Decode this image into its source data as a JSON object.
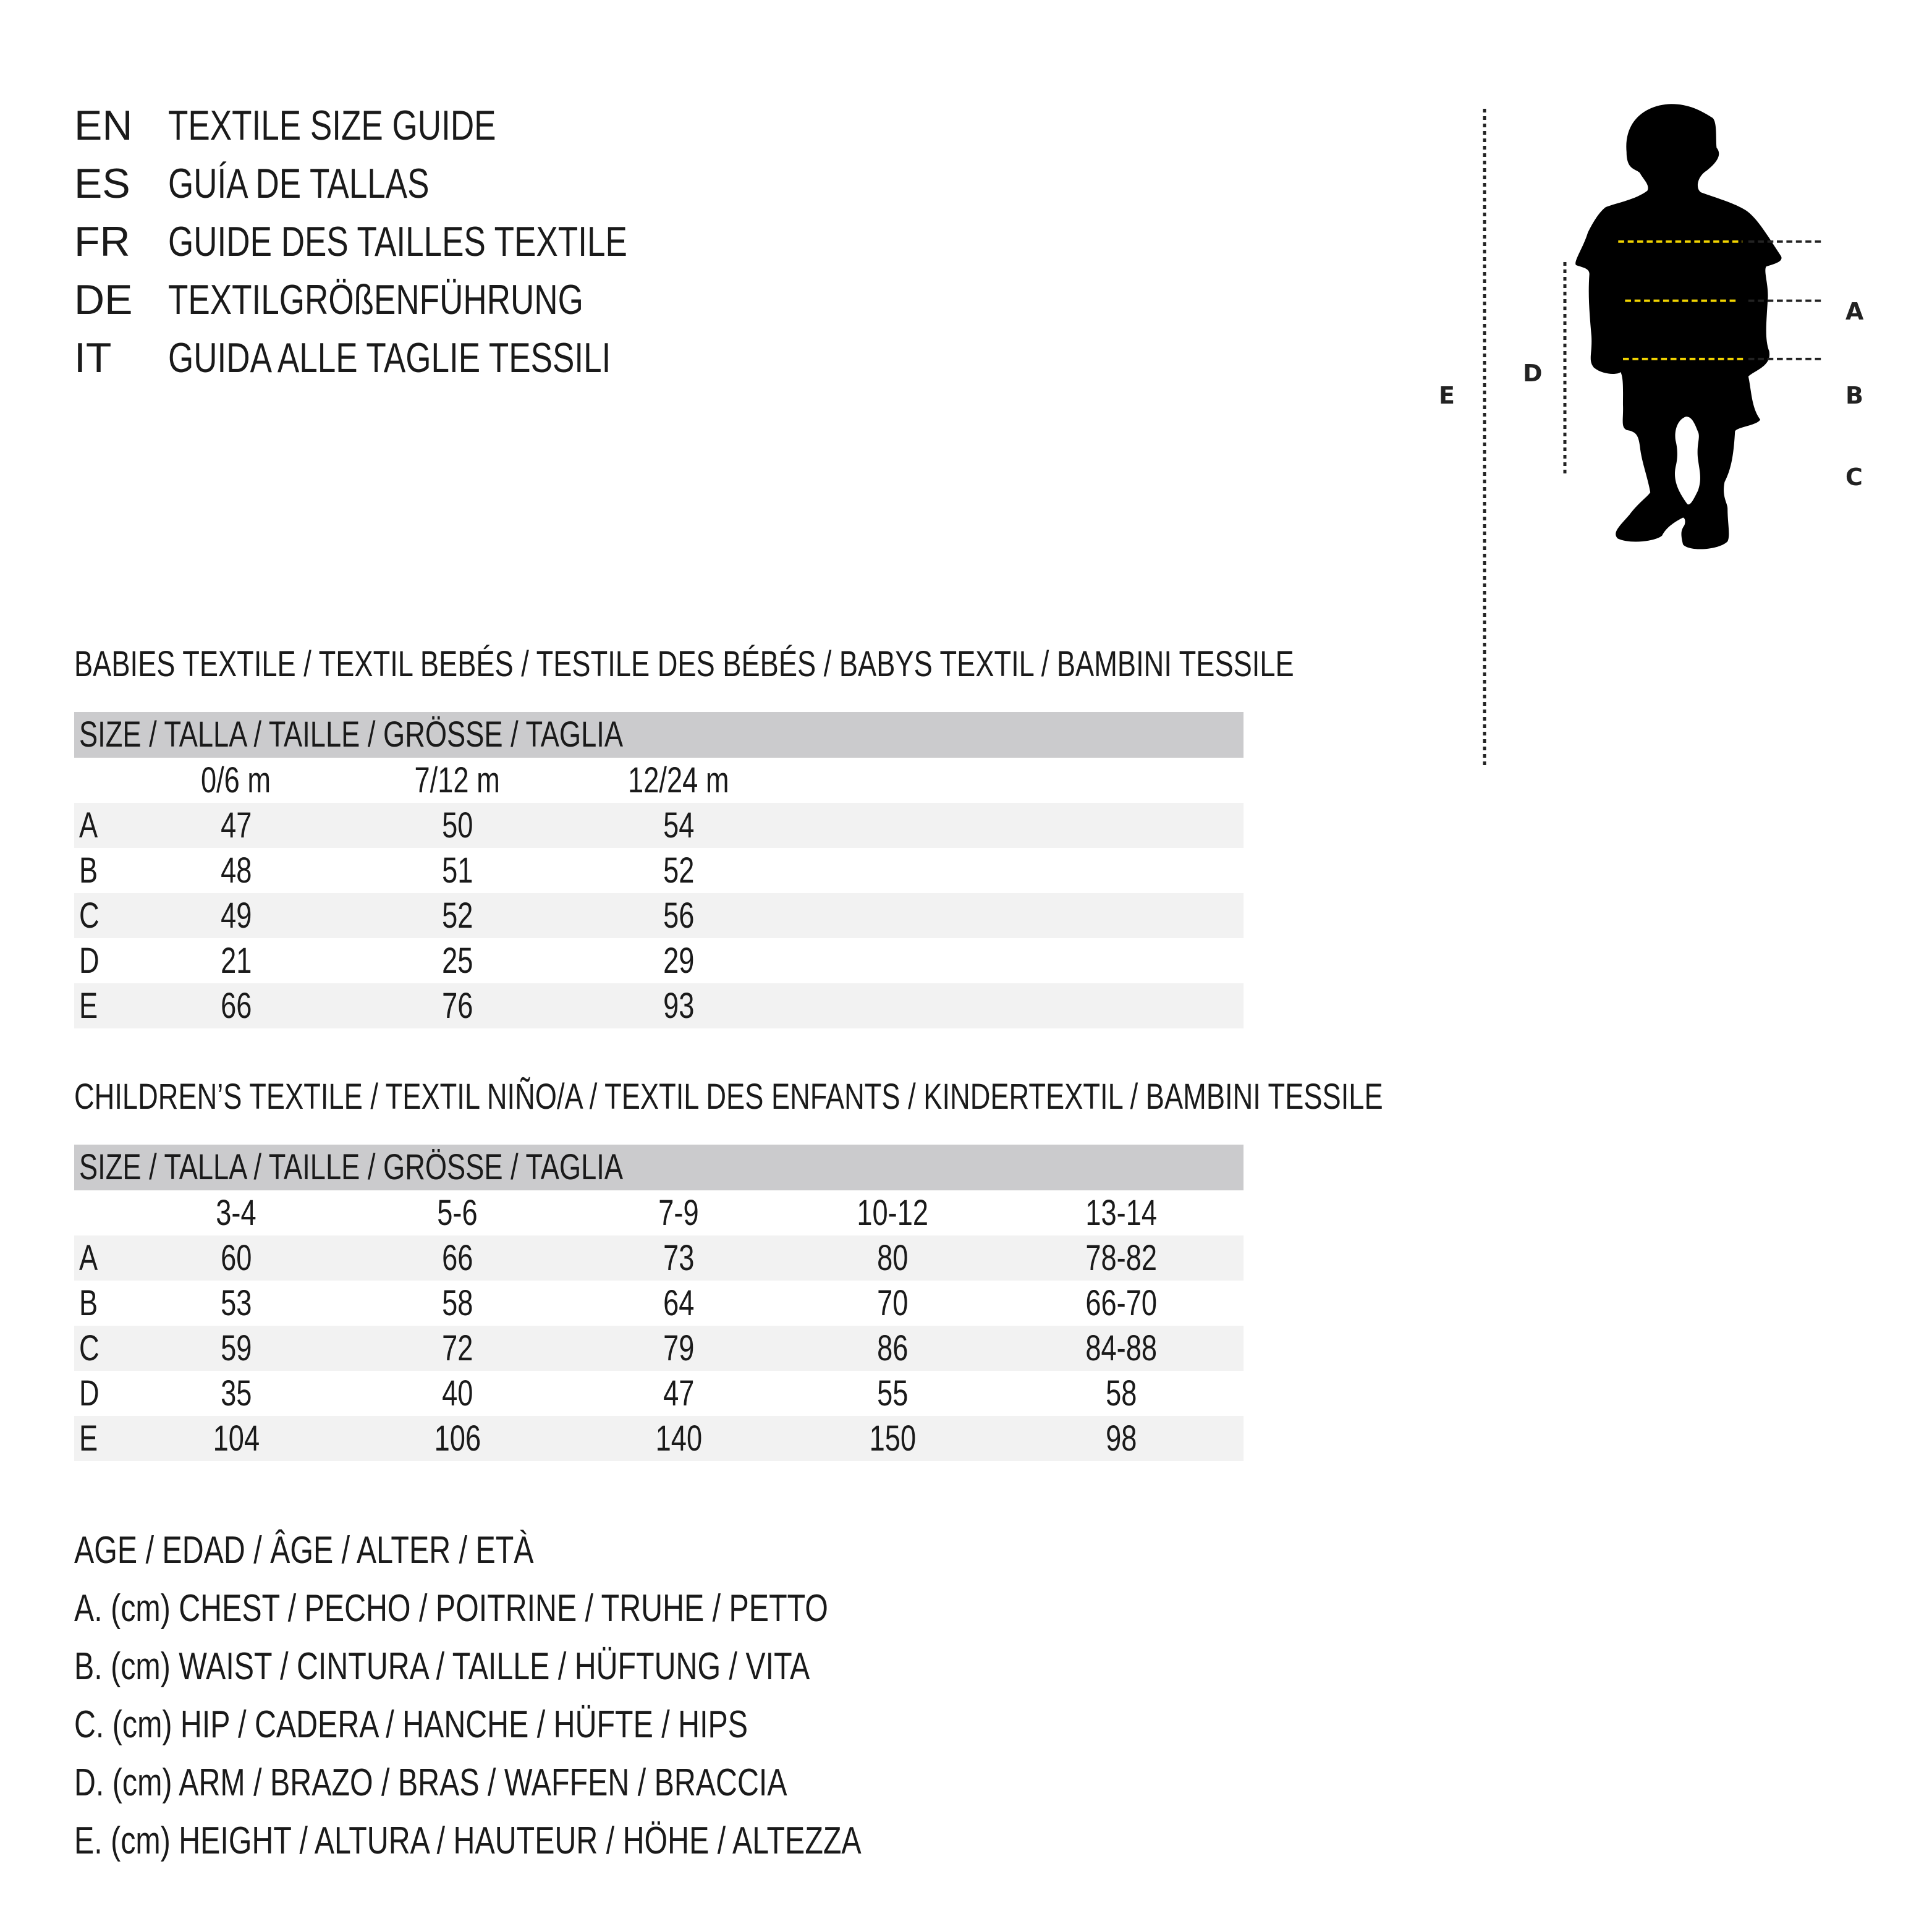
{
  "titles": [
    {
      "code": "EN",
      "text": "TEXTILE SIZE GUIDE"
    },
    {
      "code": "ES",
      "text": "GUÍA DE TALLAS"
    },
    {
      "code": "FR",
      "text": "GUIDE DES TAILLES TEXTILE"
    },
    {
      "code": "DE",
      "text": "TEXTILGRÖßENFÜHRUNG"
    },
    {
      "code": "IT",
      "text": "GUIDA ALLE TAGLIE TESSILI"
    }
  ],
  "babies": {
    "heading": "BABIES TEXTILE / TEXTIL BEBÉS / TESTILE DES BÉBÉS / BABYS TEXTIL / BAMBINI TESSILE",
    "size_header": "SIZE / TALLA / TAILLE / GRÖSSE / TAGLIA",
    "columns": [
      "0/6 m",
      "7/12 m",
      "12/24 m"
    ],
    "rows": [
      {
        "label": "A",
        "values": [
          "47",
          "50",
          "54"
        ]
      },
      {
        "label": "B",
        "values": [
          "48",
          "51",
          "52"
        ]
      },
      {
        "label": "C",
        "values": [
          "49",
          "52",
          "56"
        ]
      },
      {
        "label": "D",
        "values": [
          "21",
          "25",
          "29"
        ]
      },
      {
        "label": "E",
        "values": [
          "66",
          "76",
          "93"
        ]
      }
    ]
  },
  "children": {
    "heading": "CHILDREN’S TEXTILE / TEXTIL NIÑO/A / TEXTIL DES ENFANTS / KINDERTEXTIL / BAMBINI TESSILE",
    "size_header": "SIZE / TALLA / TAILLE / GRÖSSE / TAGLIA",
    "columns": [
      "3-4",
      "5-6",
      "7-9",
      "10-12",
      "13-14"
    ],
    "rows": [
      {
        "label": "A",
        "values": [
          "60",
          "66",
          "73",
          "80",
          "78-82"
        ]
      },
      {
        "label": "B",
        "values": [
          "53",
          "58",
          "64",
          "70",
          "66-70"
        ]
      },
      {
        "label": "C",
        "values": [
          "59",
          "72",
          "79",
          "86",
          "84-88"
        ]
      },
      {
        "label": "D",
        "values": [
          "35",
          "40",
          "47",
          "55",
          "58"
        ]
      },
      {
        "label": "E",
        "values": [
          "104",
          "106",
          "140",
          "150",
          "98"
        ]
      }
    ]
  },
  "legend": [
    "AGE / EDAD / ÂGE / ALTER / ETÀ",
    "A. (cm) CHEST / PECHO / POITRINE / TRUHE / PETTO",
    "B. (cm) WAIST / CINTURA / TAILLE / HÜFTUNG / VITA",
    "C. (cm) HIP / CADERA / HANCHE / HÜFTE / HIPS",
    "D. (cm) ARM / BRAZO / BRAS / WAFFEN / BRACCIA",
    "E. (cm) HEIGHT / ALTURA / HAUTEUR / HÖHE / ALTEZZA"
  ],
  "figure": {
    "labels": {
      "a": "A",
      "b": "B",
      "c": "C",
      "d": "D",
      "e": "E"
    },
    "colors": {
      "silhouette": "#000000",
      "measure_line": "#f2d400",
      "guide_line": "#222222"
    }
  }
}
